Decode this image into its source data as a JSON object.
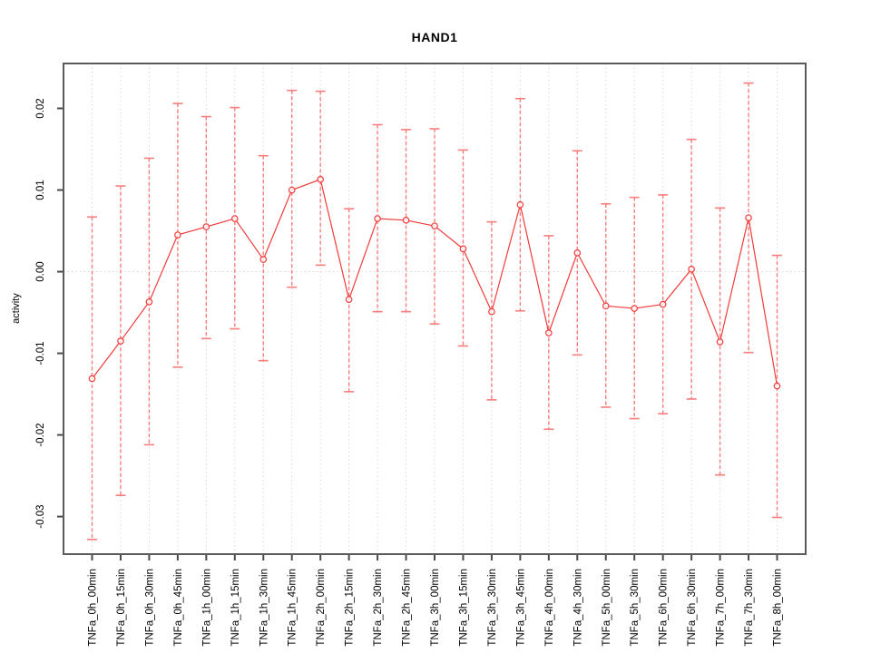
{
  "figure": {
    "background": "#ffffff"
  },
  "chart_data": {
    "type": "line",
    "title": "HAND1",
    "xlabel": "",
    "ylabel": "activity",
    "legend": "none",
    "point_style": "open-circle",
    "error_bars": "dashed vertical lines with solid horizontal caps",
    "grid": "vertical dotted gridline at every category; horizontal dotted gridline at 0.00",
    "ylim": [
      -0.0346,
      0.0255
    ],
    "yticks": [
      0.02,
      0.01,
      0,
      -0.01,
      -0.02,
      -0.03
    ],
    "ytick_labels": [
      "0.02",
      "0.01",
      "0.00",
      "-0.01",
      "-0.02",
      "-0.03"
    ],
    "categories": [
      "TNFa_0h_00min",
      "TNFa_0h_15min",
      "TNFa_0h_30min",
      "TNFa_0h_45min",
      "TNFa_1h_00min",
      "TNFa_1h_15min",
      "TNFa_1h_30min",
      "TNFa_1h_45min",
      "TNFa_2h_00min",
      "TNFa_2h_15min",
      "TNFa_2h_30min",
      "TNFa_2h_45min",
      "TNFa_3h_00min",
      "TNFa_3h_15min",
      "TNFa_3h_30min",
      "TNFa_3h_45min",
      "TNFa_4h_00min",
      "TNFa_4h_30min",
      "TNFa_5h_00min",
      "TNFa_5h_30min",
      "TNFa_6h_00min",
      "TNFa_6h_30min",
      "TNFa_7h_00min",
      "TNFa_7h_30min",
      "TNFa_8h_00min"
    ],
    "series": [
      {
        "name": "activity",
        "values": [
          -0.0131,
          -0.0085,
          -0.0037,
          0.0045,
          0.0055,
          0.0065,
          0.0015,
          0.01,
          0.0113,
          -0.0034,
          0.0065,
          0.0063,
          0.0056,
          0.0028,
          -0.0049,
          0.0082,
          -0.0075,
          0.0023,
          -0.0042,
          -0.0045,
          -0.004,
          0.0003,
          -0.0086,
          0.0066,
          -0.014
        ],
        "upper": [
          0.0067,
          0.0105,
          0.0139,
          0.0206,
          0.019,
          0.0201,
          0.0142,
          0.0222,
          0.0221,
          0.0077,
          0.018,
          0.0174,
          0.0175,
          0.0149,
          0.0061,
          0.0212,
          0.0044,
          0.0148,
          0.0083,
          0.0091,
          0.0094,
          0.0162,
          0.0078,
          0.0231,
          0.002
        ],
        "lower": [
          -0.0328,
          -0.0274,
          -0.0212,
          -0.0117,
          -0.0082,
          -0.007,
          -0.0109,
          -0.0019,
          0.0008,
          -0.0147,
          -0.0049,
          -0.0049,
          -0.0064,
          -0.0091,
          -0.0157,
          -0.0048,
          -0.0193,
          -0.0102,
          -0.0166,
          -0.018,
          -0.0174,
          -0.0156,
          -0.0249,
          -0.0099,
          -0.0301
        ]
      }
    ],
    "colors": {
      "series": "#f03b3b",
      "error_bar": "#f87d7d",
      "grid": "#d9d9d9",
      "axis_box": "#5a5a5a",
      "tick": "#4a4a4a",
      "text": "#000000",
      "background": "#ffffff"
    }
  }
}
